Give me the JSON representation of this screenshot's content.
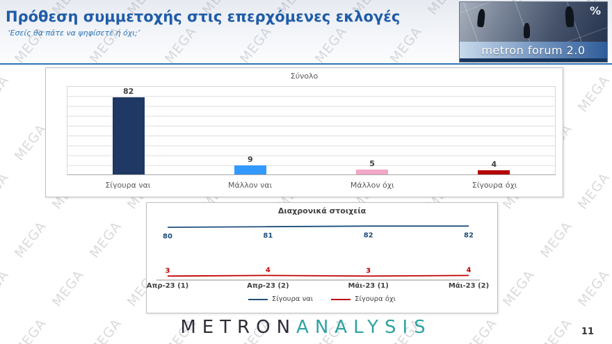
{
  "header": {
    "title": "Πρόθεση συμμετοχής στις επερχόμενες εκλογές",
    "subtitle": "‘Εσείς θα πάτε να ψηφίσετε ή όχι;’",
    "logo_brand": "metron forum 2.0",
    "logo_percent": "%"
  },
  "watermark_text": "MEGA",
  "chart_data": [
    {
      "type": "bar",
      "title": "Σύνολο",
      "categories": [
        "Σίγουρα ναι",
        "Μάλλον ναι",
        "Μάλλον όχι",
        "Σίγουρα όχι"
      ],
      "values": [
        82,
        9,
        5,
        4
      ],
      "bar_colors": [
        "#1F3864",
        "#3399FF",
        "#F2A7C6",
        "#B30000"
      ],
      "ylim": [
        0,
        90
      ],
      "grid_intervals": 9,
      "grid": true,
      "legend_position": "none"
    },
    {
      "type": "line",
      "title": "Διαχρονικά στοιχεία",
      "categories": [
        "Απρ-23 (1)",
        "Απρ-23 (2)",
        "Μάι-23 (1)",
        "Μάι-23 (2)"
      ],
      "series": [
        {
          "name": "Σίγουρα ναι",
          "values": [
            80,
            81,
            82,
            82
          ],
          "color": "#1F4E79"
        },
        {
          "name": "Σίγουρα όχι",
          "values": [
            3,
            4,
            3,
            4
          ],
          "color": "#C00000"
        }
      ],
      "ylim": [
        0,
        90
      ],
      "grid": false,
      "legend_position": "bottom"
    }
  ],
  "footer": {
    "brand_left": "METRON",
    "brand_right": "ANALYSIS",
    "page_number": "11"
  }
}
